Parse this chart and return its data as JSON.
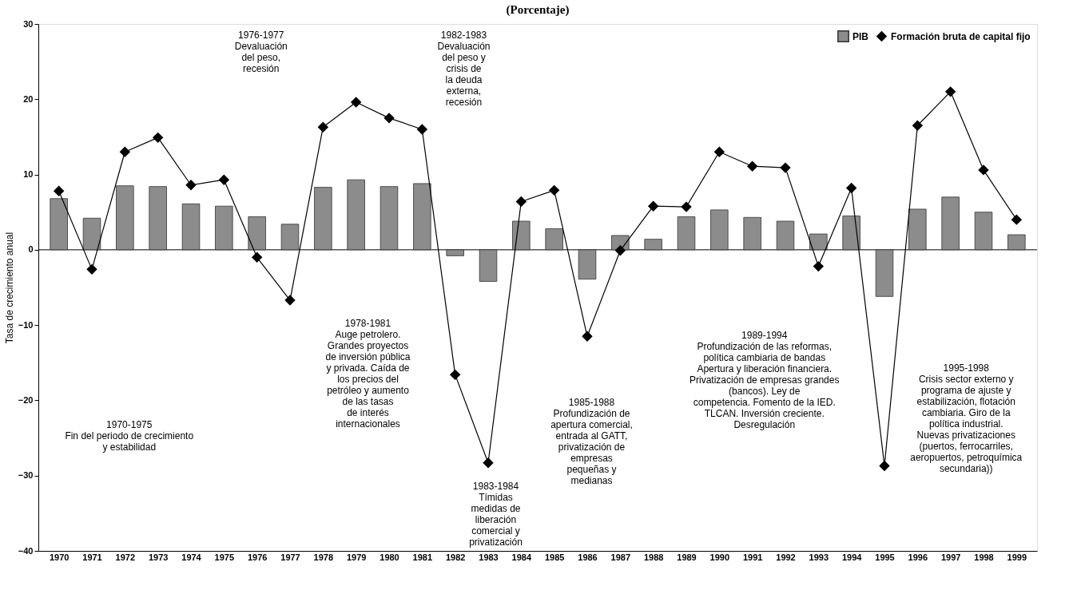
{
  "chart_data": {
    "type": "bar",
    "title": "(Porcentaje)",
    "ylabel": "Tasa de crecimiento anual",
    "categories": [
      "1970",
      "1971",
      "1972",
      "1973",
      "1974",
      "1975",
      "1976",
      "1977",
      "1978",
      "1979",
      "1980",
      "1981",
      "1982",
      "1983",
      "1984",
      "1985",
      "1986",
      "1987",
      "1988",
      "1989",
      "1990",
      "1991",
      "1992",
      "1993",
      "1994",
      "1995",
      "1996",
      "1997",
      "1998",
      "1999"
    ],
    "series": [
      {
        "name": "Formación bruta de capital fijo",
        "type": "line",
        "color": "#000000",
        "marker": "diamond",
        "line_style": "solid",
        "values": [
          7.8,
          -2.6,
          13.0,
          14.9,
          8.6,
          9.3,
          -1.0,
          -6.7,
          16.3,
          19.6,
          17.5,
          16.0,
          -16.6,
          -28.3,
          6.4,
          7.9,
          -11.5,
          -0.1,
          5.8,
          5.7,
          13.0,
          11.1,
          10.9,
          -2.2,
          8.2,
          -28.7,
          16.5,
          21.0,
          10.6,
          4.0
        ]
      },
      {
        "name": "PIB",
        "color": "#8c8c8c",
        "values": [
          6.8,
          4.2,
          8.5,
          8.4,
          6.1,
          5.8,
          4.4,
          3.4,
          8.3,
          9.3,
          8.4,
          8.8,
          -0.8,
          -4.2,
          3.8,
          2.8,
          -3.9,
          1.9,
          1.4,
          4.4,
          5.3,
          4.3,
          3.8,
          2.1,
          4.5,
          -6.2,
          5.4,
          7.0,
          5.0,
          2.0
        ]
      }
    ],
    "ylim": [
      -40,
      30
    ],
    "yticks": [
      -40,
      -30,
      -20,
      -10,
      0,
      10,
      20,
      30
    ],
    "grid": false,
    "ref_lines": [
      {
        "axis": "y",
        "value": 0,
        "color": "#000000"
      }
    ],
    "legend": "top right",
    "annotations": [
      "1976-1977\nDevaluación\ndel peso,\nrecesión",
      "1982-1983\nDevaluación\ndel peso y\ncrisis de\nla deuda\nexterna,\nrecesión",
      "1970-1975\nFin del periodo de crecimiento\ny estabilidad",
      "1978-1981\nAuge petrolero.\nGrandes proyectos\nde inversión pública\ny privada. Caída de\nlos precios del\npetróleo y aumento\nde las tasas\nde interés\ninternacionales",
      "1983-1984\nTímidas\nmedidas de\nliberación\ncomercial y\nprivatización",
      "1985-1988\nProfundización de\napertura comercial,\nentrada al GATT,\nprivatización de\nempresas\npequeñas y\nmedianas",
      "1989-1994\nProfundización de las reformas,\npolítica cambiaria de bandas\nApertura y liberación financiera.\nPrivatización de empresas grandes\n(bancos). Ley de\ncompetencia. Fomento de la IED.\nTLCAN. Inversión creciente.\nDesregulación",
      "1995-1998\nCrisis sector externo y\nprograma de ajuste y\nestabilización, flotación\ncambiaria. Giro de la\npolítica industrial.\nNuevas privatizaciones\n(puertos, ferrocarriles,\naeropuertos, petroquímica\nsecundaria))"
    ]
  }
}
